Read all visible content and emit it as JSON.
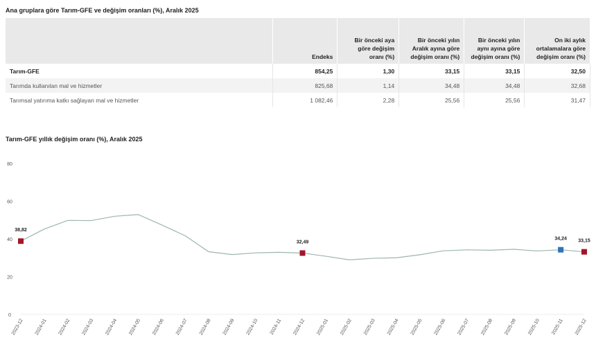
{
  "table": {
    "title": "Ana gruplara göre Tarım-GFE ve değişim oranları (%), Aralık 2025",
    "headers": [
      "",
      "Endeks",
      "Bir önceki aya göre değişim oranı (%)",
      "Bir önceki yılın Aralık ayına göre değişim oranı (%)",
      "Bir önceki yılın aynı ayına göre değişim oranı (%)",
      "On iki aylık ortalamalara göre değişim oranı (%)"
    ],
    "rows": [
      [
        "Tarım-GFE",
        "854,25",
        "1,30",
        "33,15",
        "33,15",
        "32,50"
      ],
      [
        "Tarımda kullanılan mal ve hizmetler",
        "825,68",
        "1,14",
        "34,48",
        "34,48",
        "32,68"
      ],
      [
        "Tarımsal yatırıma katkı sağlayan mal ve hizmetler",
        "1 082,46",
        "2,28",
        "25,56",
        "25,56",
        "31,47"
      ]
    ]
  },
  "chart_data": {
    "type": "line",
    "title": "Tarım-GFE yıllık değişim oranı (%), Aralık 2025",
    "xlabel": "",
    "ylabel": "",
    "ylim": [
      0,
      80
    ],
    "yticks": [
      "0",
      "20",
      "40",
      "60",
      "80"
    ],
    "grid": false,
    "categories": [
      "2023-12",
      "2024-01",
      "2024-02",
      "2024-03",
      "2024-04",
      "2024-05",
      "2024-06",
      "2024-07",
      "2024-08",
      "2024-09",
      "2024-10",
      "2024-11",
      "2024-12",
      "2025-01",
      "2025-02",
      "2025-03",
      "2025-04",
      "2025-05",
      "2025-06",
      "2025-07",
      "2025-08",
      "2025-09",
      "2025-10",
      "2025-11",
      "2025-12"
    ],
    "values": [
      38.82,
      45.2,
      49.8,
      49.7,
      52.0,
      52.9,
      47.4,
      41.7,
      33.2,
      31.7,
      32.6,
      32.9,
      32.49,
      30.8,
      28.9,
      29.7,
      30.0,
      31.6,
      33.7,
      34.2,
      34.0,
      34.5,
      33.6,
      34.24,
      33.15
    ],
    "line_color": "#9bb5b0",
    "markers": [
      {
        "category": "2023-12",
        "label": "38,82",
        "color": "#a3162a"
      },
      {
        "category": "2024-12",
        "label": "32,49",
        "color": "#a3162a"
      },
      {
        "category": "2025-11",
        "label": "34,24",
        "color": "#2e75b6"
      },
      {
        "category": "2025-12",
        "label": "33,15",
        "color": "#a3162a"
      }
    ]
  }
}
